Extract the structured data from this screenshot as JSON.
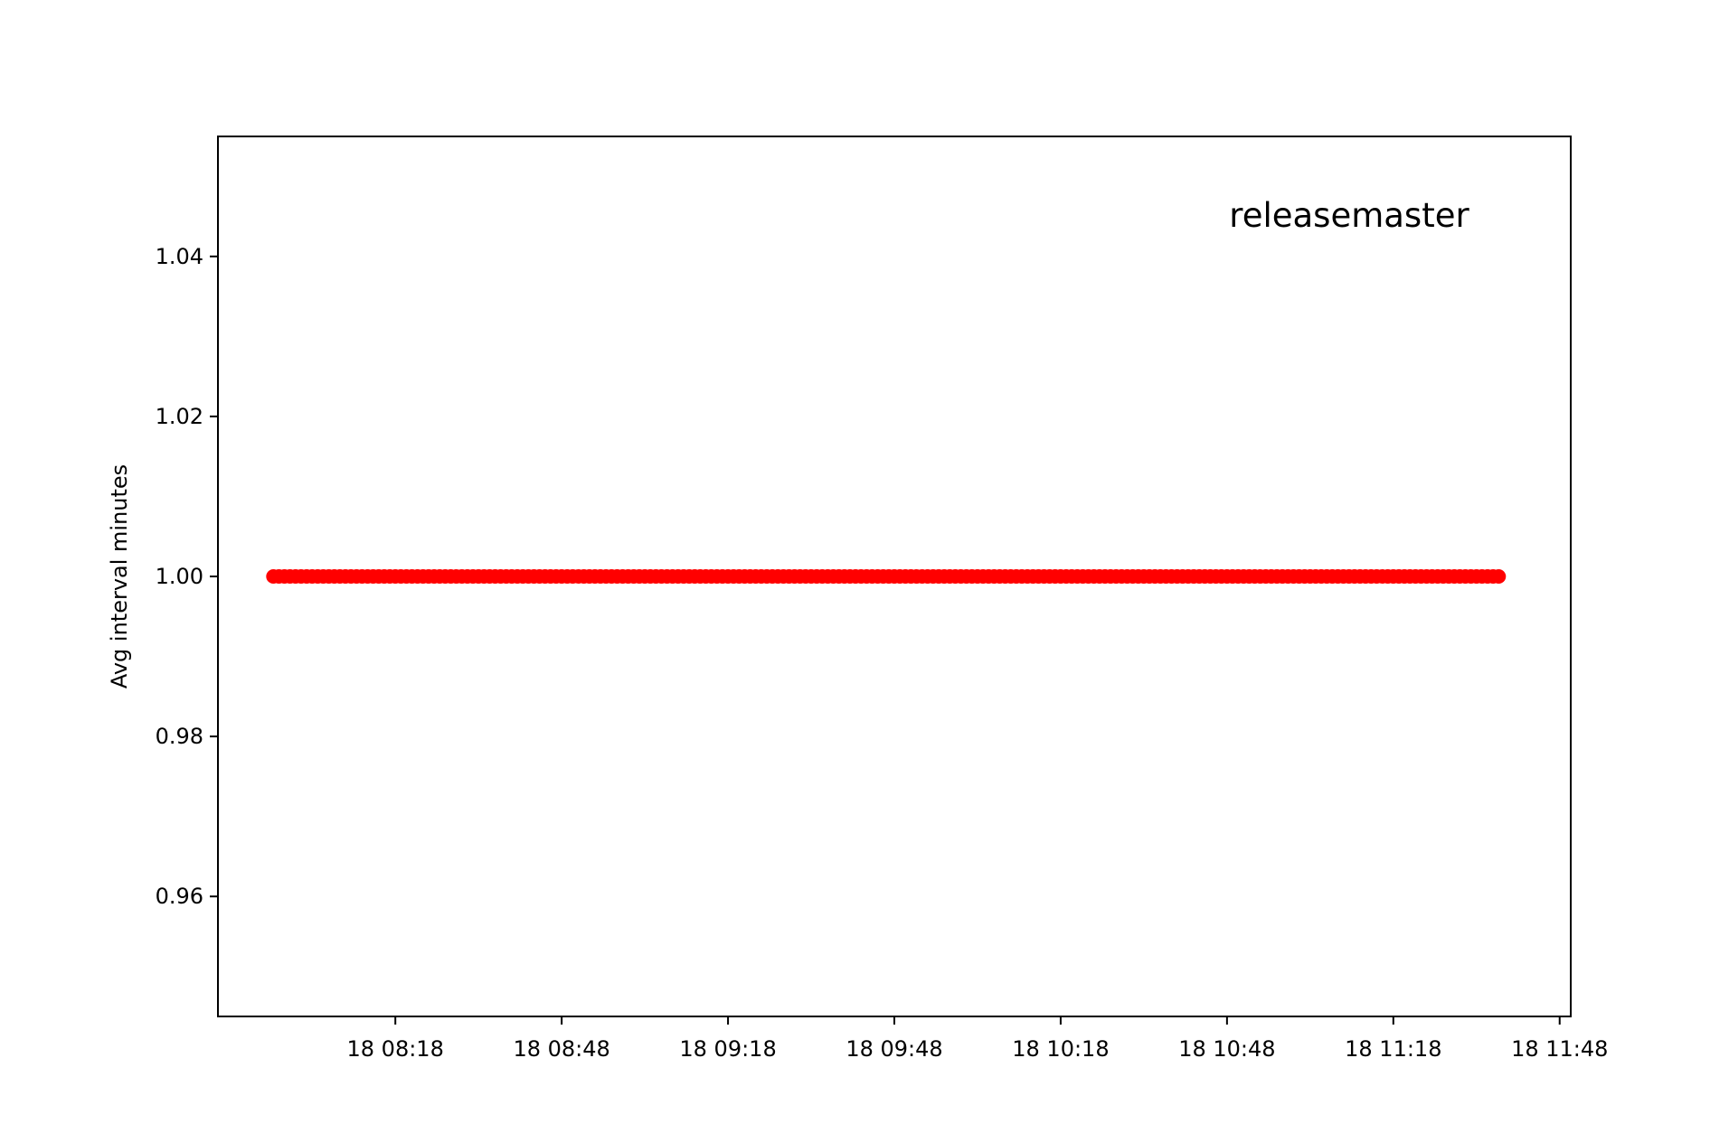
{
  "chart_data": {
    "type": "scatter",
    "title": "",
    "xlabel": "",
    "ylabel": "Avg interval minutes",
    "annotation": "releasemaster",
    "x_axis": {
      "kind": "datetime",
      "date_label": "18",
      "range": [
        "07:46",
        "11:50"
      ],
      "ticks": [
        "08:18",
        "08:48",
        "09:18",
        "09:48",
        "10:18",
        "10:48",
        "11:18",
        "11:48"
      ],
      "tick_labels": [
        "18 08:18",
        "18 08:48",
        "18 09:18",
        "18 09:48",
        "18 10:18",
        "18 10:48",
        "18 11:18",
        "18 11:48"
      ]
    },
    "y_axis": {
      "range": [
        0.945,
        1.055
      ],
      "ticks": [
        0.96,
        0.98,
        1.0,
        1.02,
        1.04
      ],
      "tick_labels": [
        "0.96",
        "0.98",
        "1.00",
        "1.02",
        "1.04"
      ]
    },
    "grid": false,
    "legend": "none",
    "series": [
      {
        "color": "#ff0000",
        "marker": "circle",
        "x_start": "07:56",
        "x_end": "11:37",
        "x_step_minutes": 1,
        "y": 1.0
      }
    ]
  }
}
